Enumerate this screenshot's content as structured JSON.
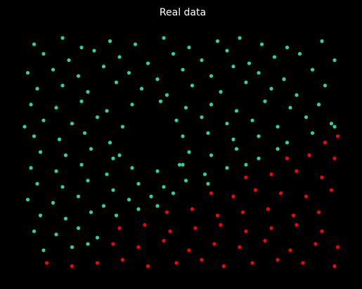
{
  "chart_data": {
    "type": "scatter",
    "title": "Real data",
    "xlim": [
      0,
      10
    ],
    "ylim": [
      0,
      7.5
    ],
    "series": [
      {
        "color": "#27d69a",
        "x": [
          0.3,
          1.2,
          1.8,
          2.7,
          3.5,
          4.4,
          5.2,
          6.1,
          6.8,
          7.5,
          8.3,
          9.4,
          0.6,
          1.4,
          2.2,
          3.0,
          3.9,
          4.7,
          5.6,
          6.4,
          7.1,
          7.9,
          8.7,
          9.8,
          0.1,
          0.9,
          1.7,
          2.5,
          3.3,
          4.2,
          5.0,
          5.9,
          6.6,
          7.4,
          8.2,
          9.1,
          0.4,
          1.2,
          2.0,
          2.9,
          3.7,
          4.5,
          5.3,
          6.2,
          7.0,
          7.8,
          8.6,
          9.5,
          0.2,
          1.0,
          1.8,
          2.6,
          3.4,
          4.3,
          5.1,
          5.9,
          6.7,
          7.6,
          8.4,
          9.3,
          0.6,
          1.5,
          2.3,
          3.1,
          4.8,
          5.6,
          6.4,
          7.2,
          8.0,
          8.9,
          9.7,
          0.0,
          0.3,
          1.1,
          1.9,
          2.7,
          5.0,
          5.8,
          6.6,
          7.4,
          8.3,
          9.1,
          9.8,
          3.0,
          0.5,
          1.3,
          2.1,
          2.8,
          5.2,
          5.9,
          6.7,
          7.4,
          8.0,
          4.9,
          0.2,
          1.0,
          1.8,
          2.6,
          3.4,
          4.2,
          5.0,
          5.7,
          6.4,
          7.0,
          0.4,
          1.2,
          2.0,
          2.8,
          3.6,
          4.4,
          5.1,
          5.8,
          0.1,
          0.9,
          1.7,
          2.5,
          3.3,
          4.0,
          4.7,
          0.5,
          1.3,
          2.1,
          2.9,
          3.6,
          4.2,
          0.3,
          1.0,
          1.7,
          2.3,
          0.6,
          1.5,
          2.0
        ],
        "values": [
          7.1,
          7.3,
          7.0,
          7.2,
          7.1,
          7.3,
          7.0,
          7.2,
          7.3,
          7.1,
          7.0,
          7.2,
          6.8,
          6.6,
          6.9,
          6.7,
          6.5,
          6.8,
          6.6,
          6.9,
          6.5,
          6.7,
          6.8,
          6.6,
          6.2,
          6.3,
          6.1,
          6.4,
          6.2,
          6.0,
          6.3,
          6.1,
          6.4,
          6.2,
          6.0,
          6.3,
          5.7,
          5.8,
          5.6,
          5.9,
          5.7,
          5.5,
          5.8,
          5.6,
          5.9,
          5.7,
          5.5,
          5.8,
          5.2,
          5.1,
          5.3,
          5.0,
          5.2,
          5.3,
          5.1,
          5.2,
          5.0,
          5.3,
          5.1,
          5.2,
          4.7,
          4.6,
          4.8,
          4.5,
          4.7,
          4.8,
          4.6,
          4.7,
          4.5,
          4.8,
          4.6,
          4.5,
          4.2,
          4.1,
          4.3,
          4.0,
          4.2,
          4.3,
          4.1,
          4.2,
          4.0,
          4.3,
          4.5,
          3.6,
          3.7,
          3.6,
          3.8,
          3.5,
          3.7,
          3.6,
          3.8,
          3.5,
          3.8,
          3.3,
          3.2,
          3.1,
          3.3,
          3.0,
          3.2,
          3.1,
          3.3,
          3.0,
          3.2,
          3.3,
          2.7,
          2.6,
          2.8,
          2.5,
          2.7,
          2.6,
          2.8,
          2.7,
          2.2,
          2.1,
          2.3,
          2.0,
          2.2,
          2.3,
          2.4,
          1.7,
          1.6,
          1.8,
          1.7,
          1.9,
          2.0,
          1.2,
          1.1,
          1.3,
          1.0,
          0.6,
          0.7,
          0.8
        ]
      },
      {
        "color": "#ff0000",
        "x": [
          0.7,
          1.5,
          2.3,
          3.1,
          3.9,
          4.8,
          5.6,
          6.3,
          7.2,
          8.0,
          8.8,
          9.8,
          2.8,
          3.6,
          4.4,
          5.2,
          6.0,
          6.8,
          7.6,
          8.4,
          9.2,
          9.9,
          3.0,
          3.8,
          4.6,
          5.4,
          6.2,
          7.0,
          7.8,
          8.6,
          9.4,
          4.5,
          5.3,
          6.1,
          6.9,
          7.7,
          8.5,
          9.3,
          5.9,
          6.6,
          7.3,
          8.1,
          8.9,
          9.7,
          7.0,
          7.8,
          8.6,
          9.4,
          8.3,
          9.0,
          9.8,
          9.5,
          9.9
        ],
        "values": [
          0.2,
          0.1,
          0.2,
          0.3,
          0.1,
          0.2,
          0.3,
          0.1,
          0.2,
          0.3,
          0.2,
          0.1,
          0.8,
          0.7,
          0.9,
          0.6,
          0.8,
          0.7,
          0.9,
          0.6,
          0.8,
          0.7,
          1.3,
          1.4,
          1.2,
          1.3,
          1.4,
          1.2,
          1.3,
          1.4,
          1.2,
          1.8,
          1.9,
          1.7,
          1.8,
          1.9,
          1.7,
          1.8,
          2.4,
          2.3,
          2.5,
          2.4,
          2.3,
          2.5,
          2.9,
          3.0,
          3.1,
          2.9,
          3.5,
          3.6,
          3.5,
          4.0,
          4.2
        ]
      }
    ]
  }
}
